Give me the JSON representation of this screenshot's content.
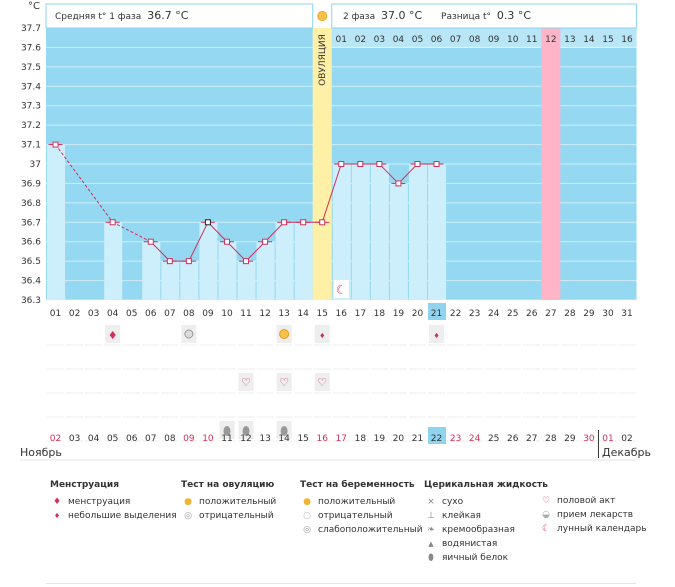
{
  "header": {
    "phase1_label": "Средняя t° 1 фаза",
    "phase1_value": "36.7 °C",
    "phase2_label": "2 фаза",
    "phase2_value": "37.0 °C",
    "diff_label": "Разница t°",
    "diff_value": "0.3 °C"
  },
  "chart_data": {
    "type": "line",
    "ylabel": "°C",
    "ylim": [
      36.3,
      37.7
    ],
    "yticks": [
      "36.3",
      "36.4",
      "36.5",
      "36.6",
      "36.7",
      "36.8",
      "36.9",
      "37",
      "37.1",
      "37.2",
      "37.3",
      "37.4",
      "37.5",
      "37.6",
      "37.7"
    ],
    "cycle_days": [
      "01",
      "02",
      "03",
      "04",
      "05",
      "06",
      "07",
      "08",
      "09",
      "10",
      "11",
      "12",
      "13",
      "14",
      "15",
      "16",
      "17",
      "18",
      "19",
      "20",
      "21",
      "22",
      "23",
      "24",
      "25",
      "26",
      "27",
      "28",
      "29",
      "30",
      "31"
    ],
    "temperatures": [
      37.1,
      null,
      null,
      36.7,
      null,
      36.6,
      36.5,
      36.5,
      36.7,
      36.6,
      36.5,
      36.6,
      36.7,
      36.7,
      36.7,
      37.0,
      37.0,
      37.0,
      36.9,
      37.0,
      37.0,
      null,
      null,
      null,
      null,
      null,
      null,
      null,
      null,
      null,
      null
    ],
    "highlight_day": "21",
    "ovulation_day": "15",
    "ovulation_label": "ОВУЛЯЦИЯ",
    "phase2_days": [
      "01",
      "02",
      "03",
      "04",
      "05",
      "06",
      "07",
      "08",
      "09",
      "10",
      "11",
      "12",
      "13",
      "14",
      "15",
      "16"
    ],
    "phase2_marked_day": "12",
    "dates": [
      "02",
      "03",
      "04",
      "05",
      "06",
      "07",
      "08",
      "09",
      "10",
      "11",
      "12",
      "13",
      "14",
      "15",
      "16",
      "17",
      "18",
      "19",
      "20",
      "21",
      "22",
      "23",
      "24",
      "25",
      "26",
      "27",
      "28",
      "29",
      "30",
      "01",
      "02"
    ],
    "weekend_dates": [
      0,
      7,
      8,
      14,
      15,
      21,
      22,
      28,
      29
    ],
    "highlight_date": "22",
    "month_left": "Ноябрь",
    "month_right": "Декабрь",
    "events": {
      "menstruation": [
        {
          "day": 4
        }
      ],
      "small_spotting": [
        {
          "day": 15
        },
        {
          "day": 21
        }
      ],
      "ovulation_negative": [
        {
          "day": 8
        }
      ],
      "ovulation_positive": [
        {
          "day": 13
        }
      ],
      "intercourse": [
        {
          "day": 11
        },
        {
          "day": 13
        },
        {
          "day": 15
        }
      ],
      "egg_white": [
        {
          "day": 10
        },
        {
          "day": 11
        },
        {
          "day": 13
        }
      ],
      "lunar": [
        {
          "day": 16
        }
      ]
    }
  },
  "legend": {
    "menstruation": {
      "title": "Менструация",
      "items": [
        "менструация",
        "небольшие выделения"
      ]
    },
    "ovulation_test": {
      "title": "Тест на овуляцию",
      "items": [
        "положительный",
        "отрицательный"
      ]
    },
    "pregnancy_test": {
      "title": "Тест на беременность",
      "items": [
        "положительный",
        "отрицательный",
        "слабоположительный"
      ]
    },
    "cervical": {
      "title": "Церикальная жидкость",
      "items": [
        "сухо",
        "клейкая",
        "кремообразная",
        "водянистая",
        "яичный белок"
      ]
    },
    "other": {
      "items": [
        "половой акт",
        "прием лекарств",
        "лунный календарь"
      ]
    }
  },
  "colors": {
    "background_blue": "#95d8f2",
    "bar_blue": "#cdeefb",
    "ovulation_yellow": "#fff0a8",
    "marked_pink": "#ffb4c8",
    "line_red": "#d0305a",
    "weekend_red": "#d0305a",
    "highlight_box": "#8fd3ef"
  }
}
